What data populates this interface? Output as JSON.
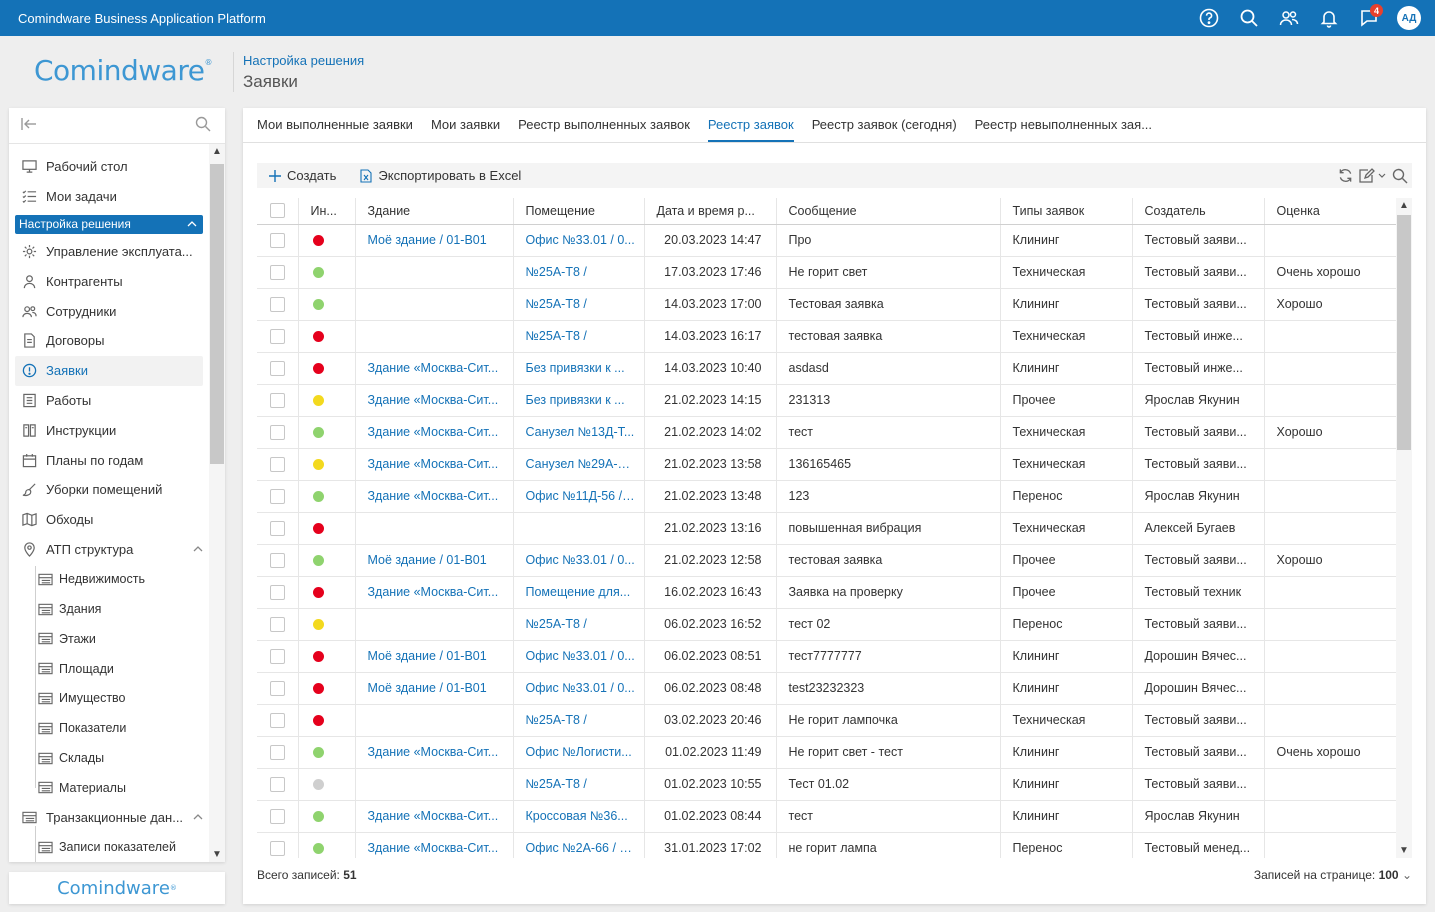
{
  "app": {
    "title": "Comindware Business Application Platform",
    "notifications_count": "4",
    "user_initials": "АД"
  },
  "header": {
    "logo": "Comindware",
    "breadcrumb": "Настройка решения",
    "title": "Заявки"
  },
  "sidebar": {
    "items": [
      {
        "label": "Рабочий стол",
        "icon": "desktop-icon",
        "type": "item"
      },
      {
        "label": "Мои задачи",
        "icon": "tasks-icon",
        "type": "item"
      },
      {
        "label": "Настройка решения",
        "icon": "",
        "type": "group-active"
      },
      {
        "label": "Управление эксплуата...",
        "icon": "gear-icon",
        "type": "item"
      },
      {
        "label": "Контрагенты",
        "icon": "person-icon",
        "type": "item"
      },
      {
        "label": "Сотрудники",
        "icon": "users-icon",
        "type": "item"
      },
      {
        "label": "Договоры",
        "icon": "document-icon",
        "type": "item"
      },
      {
        "label": "Заявки",
        "icon": "alert-circle-icon",
        "type": "active"
      },
      {
        "label": "Работы",
        "icon": "list-icon",
        "type": "item"
      },
      {
        "label": "Инструкции",
        "icon": "book-icon",
        "type": "item"
      },
      {
        "label": "Планы по годам",
        "icon": "calendar-icon",
        "type": "item"
      },
      {
        "label": "Уборки помещений",
        "icon": "brush-icon",
        "type": "item"
      },
      {
        "label": "Обходы",
        "icon": "map-icon",
        "type": "item"
      },
      {
        "label": "АТП структура",
        "icon": "location-icon",
        "type": "group"
      },
      {
        "label": "Недвижимость",
        "icon": "table-icon",
        "type": "sub"
      },
      {
        "label": "Здания",
        "icon": "table-icon",
        "type": "sub"
      },
      {
        "label": "Этажи",
        "icon": "table-icon",
        "type": "sub"
      },
      {
        "label": "Площади",
        "icon": "table-icon",
        "type": "sub"
      },
      {
        "label": "Имущество",
        "icon": "table-icon",
        "type": "sub"
      },
      {
        "label": "Показатели",
        "icon": "table-icon",
        "type": "sub"
      },
      {
        "label": "Склады",
        "icon": "table-icon",
        "type": "sub"
      },
      {
        "label": "Материалы",
        "icon": "table-icon",
        "type": "sub"
      },
      {
        "label": "Транзакционные дан...",
        "icon": "table-icon",
        "type": "group"
      },
      {
        "label": "Записи показателей",
        "icon": "table-icon",
        "type": "sub"
      }
    ],
    "footer_logo": "Comindware"
  },
  "tabs": [
    {
      "label": "Мои выполненные заявки",
      "active": false
    },
    {
      "label": "Мои заявки",
      "active": false
    },
    {
      "label": "Реестр выполненных заявок",
      "active": false
    },
    {
      "label": "Реестр заявок",
      "active": true
    },
    {
      "label": "Реестр заявок (сегодня)",
      "active": false
    },
    {
      "label": "Реестр невыполненных зая...",
      "active": false
    }
  ],
  "toolbar": {
    "create_label": "Создать",
    "export_label": "Экспортировать в Excel"
  },
  "colors": {
    "red": "#e5001c",
    "green": "#8fd36e",
    "yellow": "#f3d91e",
    "gray": "#cfcfcf",
    "accent": "#1472b7"
  },
  "table": {
    "columns": [
      "Ин...",
      "Здание",
      "Помещение",
      "Дата и время р...",
      "Сообщение",
      "Типы заявок",
      "Создатель",
      "Оценка"
    ],
    "rows": [
      {
        "status": "red",
        "building": "Моё здание / 01-B01",
        "room": "Офис №33.01 / 0...",
        "datetime": "20.03.2023 14:47",
        "message": "Про",
        "type": "Клининг",
        "creator": "Тестовый заяви...",
        "rating": ""
      },
      {
        "status": "green",
        "building": "",
        "room": "№25А-Т8 /",
        "datetime": "17.03.2023 17:46",
        "message": "Не горит свет",
        "type": "Техническая",
        "creator": "Тестовый заяви...",
        "rating": "Очень хорошо"
      },
      {
        "status": "green",
        "building": "",
        "room": "№25А-Т8 /",
        "datetime": "14.03.2023 17:00",
        "message": "Тестовая заявка",
        "type": "Клининг",
        "creator": "Тестовый заяви...",
        "rating": "Хорошо"
      },
      {
        "status": "red",
        "building": "",
        "room": "№25А-Т8 /",
        "datetime": "14.03.2023 16:17",
        "message": "тестовая заявка",
        "type": "Техническая",
        "creator": "Тестовый инже...",
        "rating": ""
      },
      {
        "status": "red",
        "building": "Здание «Москва-Сит...",
        "room": "Без привязки к ...",
        "datetime": "14.03.2023 10:40",
        "message": "asdasd",
        "type": "Клининг",
        "creator": "Тестовый инже...",
        "rating": ""
      },
      {
        "status": "yellow",
        "building": "Здание «Москва-Сит...",
        "room": "Без привязки к ...",
        "datetime": "21.02.2023 14:15",
        "message": "231313",
        "type": "Прочее",
        "creator": "Ярослав Якунин",
        "rating": ""
      },
      {
        "status": "green",
        "building": "Здание «Москва-Сит...",
        "room": "Санузел №13Д-Т...",
        "datetime": "21.02.2023 14:02",
        "message": "тест",
        "type": "Техническая",
        "creator": "Тестовый заяви...",
        "rating": "Хорошо"
      },
      {
        "status": "yellow",
        "building": "Здание «Москва-Сит...",
        "room": "Санузел №29А-С...",
        "datetime": "21.02.2023 13:58",
        "message": "136165465",
        "type": "Техническая",
        "creator": "Тестовый заяви...",
        "rating": ""
      },
      {
        "status": "green",
        "building": "Здание «Москва-Сит...",
        "room": "Офис №11Д-56 / ...",
        "datetime": "21.02.2023 13:48",
        "message": "123",
        "type": "Перенос",
        "creator": "Ярослав Якунин",
        "rating": ""
      },
      {
        "status": "red",
        "building": "",
        "room": "",
        "datetime": "21.02.2023 13:16",
        "message": "повышенная вибрация",
        "type": "Техническая",
        "creator": "Алексей Бугаев",
        "rating": ""
      },
      {
        "status": "green",
        "building": "Моё здание / 01-B01",
        "room": "Офис №33.01 / 0...",
        "datetime": "21.02.2023 12:58",
        "message": "тестовая заявка",
        "type": "Прочее",
        "creator": "Тестовый заяви...",
        "rating": "Хорошо"
      },
      {
        "status": "red",
        "building": "Здание «Москва-Сит...",
        "room": "Помещение для...",
        "datetime": "16.02.2023 16:43",
        "message": "Заявка на проверку",
        "type": "Прочее",
        "creator": "Тестовый техник",
        "rating": ""
      },
      {
        "status": "yellow",
        "building": "",
        "room": "№25А-Т8 /",
        "datetime": "06.02.2023 16:52",
        "message": "тест 02",
        "type": "Перенос",
        "creator": "Тестовый заяви...",
        "rating": ""
      },
      {
        "status": "red",
        "building": "Моё здание / 01-B01",
        "room": "Офис №33.01 / 0...",
        "datetime": "06.02.2023 08:51",
        "message": "тест7777777",
        "type": "Клининг",
        "creator": "Дорошин Вячес...",
        "rating": ""
      },
      {
        "status": "red",
        "building": "Моё здание / 01-B01",
        "room": "Офис №33.01 / 0...",
        "datetime": "06.02.2023 08:48",
        "message": "test23232323",
        "type": "Клининг",
        "creator": "Дорошин Вячес...",
        "rating": ""
      },
      {
        "status": "red",
        "building": "",
        "room": "№25А-Т8 /",
        "datetime": "03.02.2023 20:46",
        "message": "Не горит лампочка",
        "type": "Техническая",
        "creator": "Тестовый заяви...",
        "rating": ""
      },
      {
        "status": "green",
        "building": "Здание «Москва-Сит...",
        "room": "Офис №Логисти...",
        "datetime": "01.02.2023 11:49",
        "message": "Не горит свет - тест",
        "type": "Клининг",
        "creator": "Тестовый заяви...",
        "rating": "Очень хорошо"
      },
      {
        "status": "gray",
        "building": "",
        "room": "№25А-Т8 /",
        "datetime": "01.02.2023 10:55",
        "message": "Тест 01.02",
        "type": "Клининг",
        "creator": "Тестовый заяви...",
        "rating": ""
      },
      {
        "status": "green",
        "building": "Здание «Москва-Сит...",
        "room": "Кроссовая №36...",
        "datetime": "01.02.2023 08:44",
        "message": "тест",
        "type": "Клининг",
        "creator": "Ярослав Якунин",
        "rating": ""
      },
      {
        "status": "green",
        "building": "Здание «Москва-Сит...",
        "room": "Офис №2А-66 / 2...",
        "datetime": "31.01.2023 17:02",
        "message": "не горит лампа",
        "type": "Перенос",
        "creator": "Тестовый менед...",
        "rating": ""
      }
    ]
  },
  "footer": {
    "total_label": "Всего записей:",
    "total_value": "51",
    "per_page_label": "Записей на странице:",
    "per_page_value": "100"
  }
}
